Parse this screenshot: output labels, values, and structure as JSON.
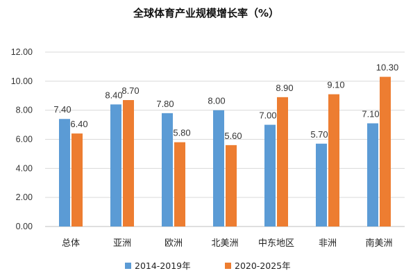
{
  "chart_data": {
    "type": "bar",
    "title": "全球体育产业规模增长率（%）",
    "xlabel": "",
    "ylabel": "",
    "categories": [
      "总体",
      "亚洲",
      "欧洲",
      "北美洲",
      "中东地区",
      "非洲",
      "南美洲"
    ],
    "series": [
      {
        "name": "2014-2019年",
        "color": "#5b9bd5",
        "values": [
          7.4,
          8.4,
          7.8,
          8.0,
          7.0,
          5.7,
          7.1
        ]
      },
      {
        "name": "2020-2025年",
        "color": "#ed7d31",
        "values": [
          6.4,
          8.7,
          5.8,
          5.6,
          8.9,
          9.1,
          10.3
        ]
      }
    ],
    "ylim": [
      0,
      12
    ],
    "yticks": [
      "0.00",
      "2.00",
      "4.00",
      "6.00",
      "8.00",
      "10.00",
      "12.00"
    ],
    "grid": true,
    "legend": "bottom"
  }
}
